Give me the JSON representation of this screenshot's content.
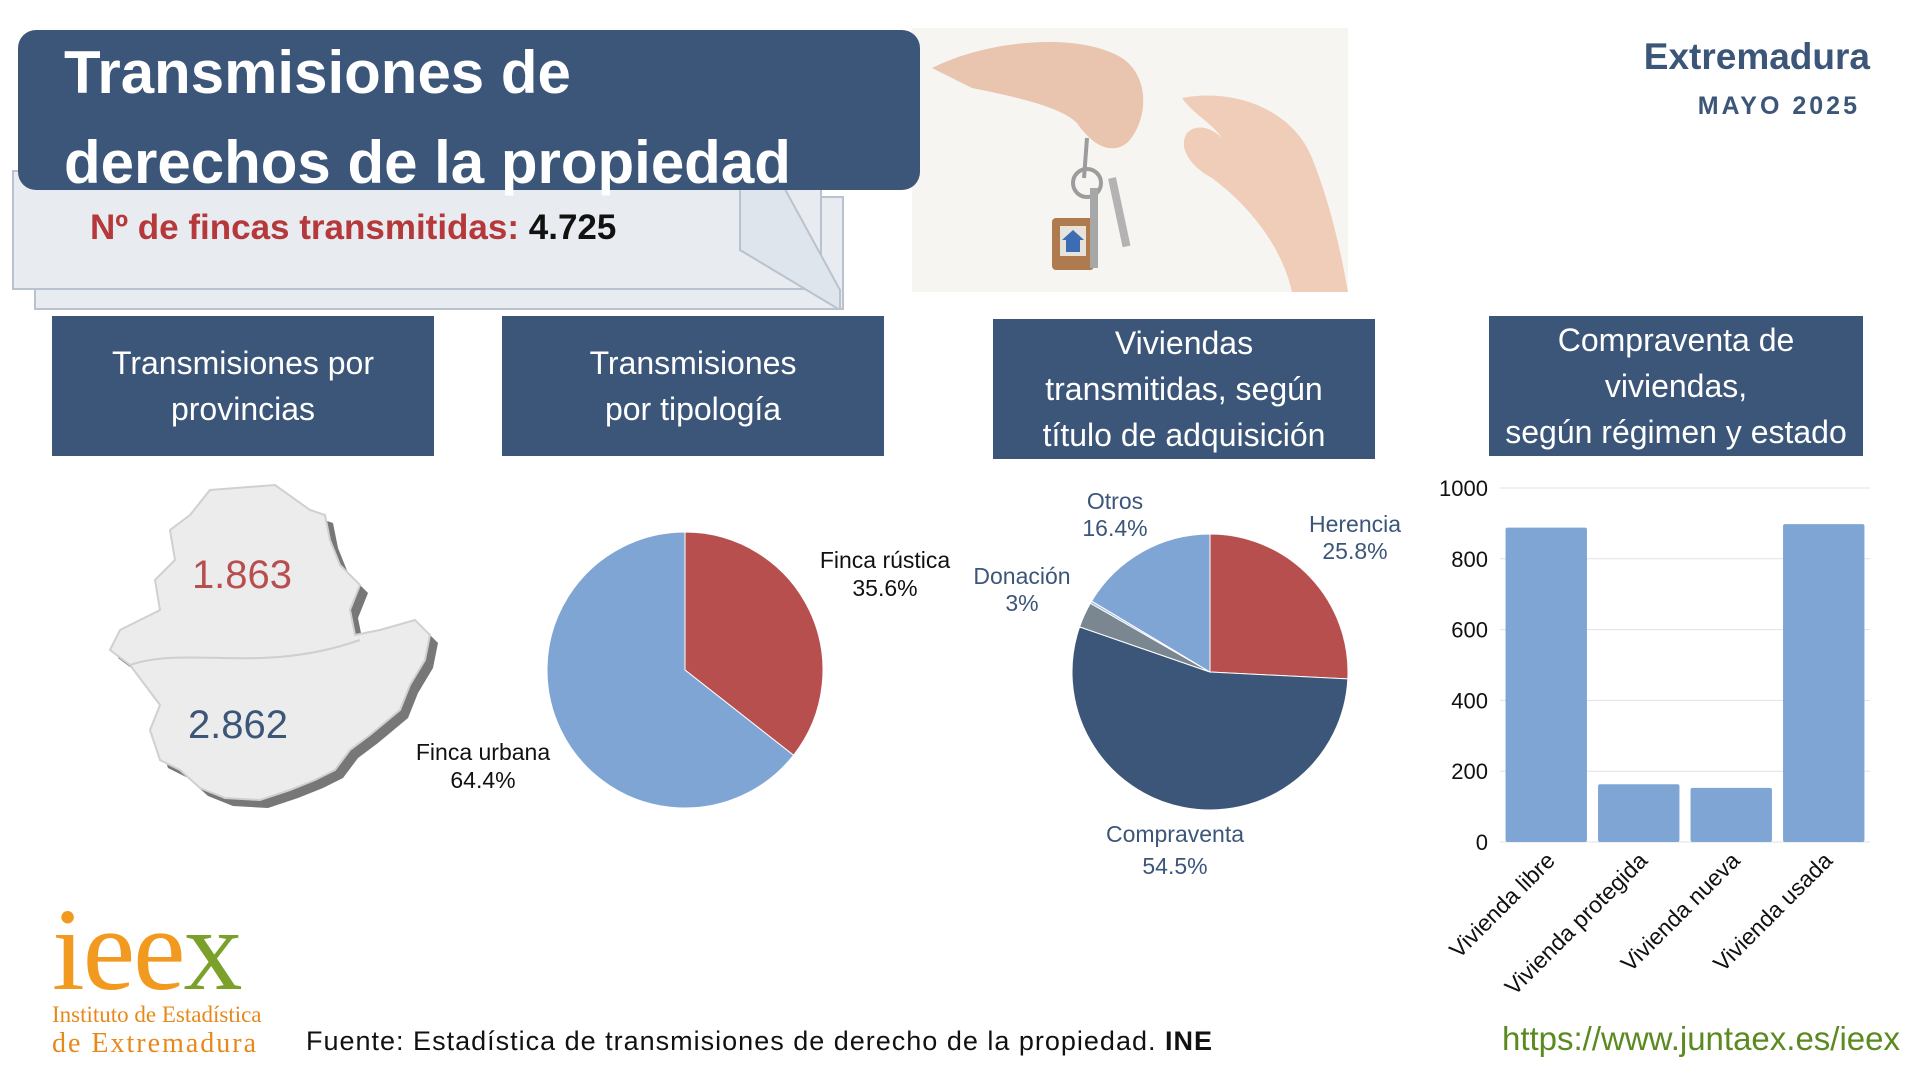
{
  "header": {
    "title_line1": "Transmisiones de",
    "title_line2": "derechos de la propiedad",
    "fincas_label": "Nº de fincas transmitidas:",
    "fincas_value": "4.725",
    "region": "Extremadura",
    "month": "MAYO 2025"
  },
  "sections": {
    "provincias": [
      "Transmisiones por",
      "provincias"
    ],
    "tipologia": [
      "Transmisiones",
      "por tipología"
    ],
    "titulo": [
      "Viviendas",
      "transmitidas, según",
      "título de adquisición"
    ],
    "regimen": [
      "Compraventa de",
      "viviendas,",
      "según régimen y estado"
    ]
  },
  "colors": {
    "navy": "#3c5679",
    "red": "#b84f4f",
    "light_blue": "#7fa5d5",
    "gray": "#7a8790",
    "bar": "#7fa5d5"
  },
  "chart_data": [
    {
      "type": "map",
      "regions": [
        {
          "value": "1.863",
          "color": "#b84f4f"
        },
        {
          "value": "2.862",
          "color": "#3c5679"
        }
      ]
    },
    {
      "type": "pie",
      "slices": [
        {
          "label": "Finca rústica",
          "value": 35.6,
          "text": "35.6%",
          "color": "#b84f4f"
        },
        {
          "label": "Finca urbana",
          "value": 64.4,
          "text": "64.4%",
          "color": "#7fa5d5"
        }
      ]
    },
    {
      "type": "pie",
      "slices": [
        {
          "label": "Herencia",
          "value": 25.8,
          "text": "25.8%",
          "color": "#b84f4f"
        },
        {
          "label": "Compraventa",
          "value": 54.5,
          "text": "54.5%",
          "color": "#3c5679"
        },
        {
          "label": "Donación",
          "value": 3.0,
          "text": "3%",
          "color": "#7a8790"
        },
        {
          "label": "",
          "value": 0.3,
          "text": "",
          "color": "#a9c3e6"
        },
        {
          "label": "Otros",
          "value": 16.4,
          "text": "16.4%",
          "color": "#7fa5d5"
        }
      ]
    },
    {
      "type": "bar",
      "categories": [
        "Vivienda libre",
        "Vivienda protegida",
        "Vivienda nueva",
        "Vivienda usada"
      ],
      "values": [
        888,
        163,
        153,
        898
      ],
      "ylim": [
        0,
        1000
      ],
      "yticks": [
        "0",
        "200",
        "400",
        "600",
        "800",
        "1000"
      ],
      "grid": true
    }
  ],
  "footer": {
    "logo_word": [
      "i",
      "e",
      "e",
      "x"
    ],
    "logo_line1": "Instituto de Estadística",
    "logo_line2": "de Extremadura",
    "source_text": "Fuente: Estadística de transmisiones de derecho de la propiedad.",
    "source_bold": "INE",
    "url": "https://www.juntaex.es/ieex"
  }
}
